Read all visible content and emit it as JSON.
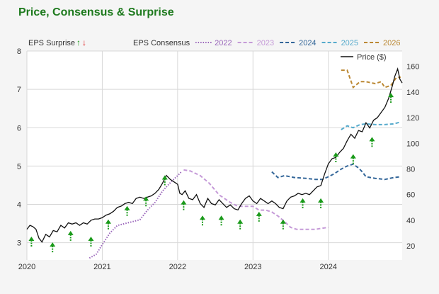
{
  "title": "Price, Consensus & Surprise",
  "colors": {
    "title": "#1e7a1e",
    "background": "#f5f5f5",
    "plot_background": "#ffffff",
    "grid": "#d8d8d8",
    "price": "#111111",
    "surprise_up": "#1a9a1a",
    "surprise_down": "#dd1111",
    "c2022": "#9a66bb",
    "c2023": "#c59ad8",
    "c2024": "#336699",
    "c2025": "#55aacc",
    "c2026": "#bb8833"
  },
  "chart_data": {
    "type": "line",
    "title": "Price, Consensus & Surprise",
    "x_axis": {
      "ticks": [
        "2020",
        "2021",
        "2022",
        "2023",
        "2024"
      ],
      "range": [
        2020.0,
        2024.98
      ]
    },
    "y_left": {
      "ticks": [
        "3",
        "4",
        "5",
        "6",
        "7",
        "8"
      ],
      "range": [
        2.55,
        8.0
      ],
      "label": ""
    },
    "y_right": {
      "ticks": [
        "20",
        "40",
        "60",
        "80",
        "100",
        "120",
        "140",
        "160"
      ],
      "range": [
        9.0,
        172.0
      ],
      "label": ""
    },
    "grid": true,
    "legend": {
      "surprise_label": "EPS Surprise",
      "consensus_label": "EPS Consensus",
      "price_label": "Price ($)",
      "placement": "top",
      "up_glyph": "↑",
      "down_glyph": "↓"
    },
    "series": [
      {
        "name": "2022",
        "axis": "left",
        "style": "dotted",
        "color_key": "c2022",
        "points": [
          [
            2020.83,
            2.6
          ],
          [
            2020.92,
            2.7
          ],
          [
            2021.0,
            2.95
          ],
          [
            2021.1,
            3.25
          ],
          [
            2021.2,
            3.45
          ],
          [
            2021.3,
            3.5
          ],
          [
            2021.4,
            3.55
          ],
          [
            2021.5,
            3.6
          ],
          [
            2021.6,
            3.85
          ],
          [
            2021.7,
            4.05
          ],
          [
            2021.8,
            4.35
          ],
          [
            2021.92,
            4.6
          ],
          [
            2022.0,
            4.75
          ],
          [
            2022.05,
            4.85
          ]
        ]
      },
      {
        "name": "2023",
        "axis": "left",
        "style": "dashed",
        "color_key": "c2023",
        "points": [
          [
            2022.08,
            4.9
          ],
          [
            2022.17,
            4.87
          ],
          [
            2022.3,
            4.75
          ],
          [
            2022.42,
            4.55
          ],
          [
            2022.55,
            4.25
          ],
          [
            2022.7,
            4.05
          ],
          [
            2022.8,
            3.95
          ],
          [
            2022.92,
            3.95
          ],
          [
            2023.0,
            3.95
          ],
          [
            2023.08,
            3.85
          ],
          [
            2023.17,
            3.85
          ],
          [
            2023.25,
            3.8
          ],
          [
            2023.33,
            3.7
          ],
          [
            2023.42,
            3.55
          ],
          [
            2023.5,
            3.4
          ],
          [
            2023.58,
            3.35
          ],
          [
            2023.7,
            3.35
          ],
          [
            2023.83,
            3.35
          ],
          [
            2023.92,
            3.38
          ],
          [
            2024.0,
            3.4
          ]
        ]
      },
      {
        "name": "2024",
        "axis": "left",
        "style": "dashed",
        "color_key": "c2024",
        "points": [
          [
            2023.25,
            4.85
          ],
          [
            2023.33,
            4.7
          ],
          [
            2023.42,
            4.75
          ],
          [
            2023.55,
            4.7
          ],
          [
            2023.7,
            4.68
          ],
          [
            2023.83,
            4.65
          ],
          [
            2023.92,
            4.65
          ],
          [
            2024.0,
            4.72
          ],
          [
            2024.08,
            4.8
          ],
          [
            2024.17,
            4.92
          ],
          [
            2024.25,
            5.0
          ],
          [
            2024.33,
            5.05
          ],
          [
            2024.4,
            4.95
          ],
          [
            2024.45,
            4.85
          ],
          [
            2024.5,
            4.72
          ],
          [
            2024.62,
            4.68
          ],
          [
            2024.75,
            4.65
          ],
          [
            2024.87,
            4.7
          ],
          [
            2024.96,
            4.72
          ]
        ]
      },
      {
        "name": "2025",
        "axis": "left",
        "style": "dashed",
        "color_key": "c2025",
        "points": [
          [
            2024.17,
            5.95
          ],
          [
            2024.25,
            6.05
          ],
          [
            2024.33,
            6.0
          ],
          [
            2024.42,
            6.08
          ],
          [
            2024.5,
            6.1
          ],
          [
            2024.62,
            6.08
          ],
          [
            2024.75,
            6.08
          ],
          [
            2024.87,
            6.1
          ],
          [
            2024.96,
            6.15
          ]
        ]
      },
      {
        "name": "2026",
        "axis": "left",
        "style": "dashed",
        "color_key": "c2026",
        "points": [
          [
            2024.17,
            7.5
          ],
          [
            2024.25,
            7.5
          ],
          [
            2024.33,
            7.05
          ],
          [
            2024.42,
            7.2
          ],
          [
            2024.5,
            7.2
          ],
          [
            2024.62,
            7.15
          ],
          [
            2024.7,
            7.2
          ],
          [
            2024.75,
            7.05
          ],
          [
            2024.83,
            7.1
          ],
          [
            2024.9,
            7.3
          ],
          [
            2024.96,
            7.32
          ]
        ]
      },
      {
        "name": "Price ($)",
        "axis": "right",
        "style": "solid",
        "color_key": "price",
        "points": [
          [
            2020.0,
            33
          ],
          [
            2020.04,
            36
          ],
          [
            2020.08,
            35
          ],
          [
            2020.12,
            33
          ],
          [
            2020.16,
            26
          ],
          [
            2020.2,
            23
          ],
          [
            2020.25,
            29
          ],
          [
            2020.3,
            27
          ],
          [
            2020.35,
            32
          ],
          [
            2020.4,
            31
          ],
          [
            2020.45,
            36
          ],
          [
            2020.5,
            34
          ],
          [
            2020.55,
            38
          ],
          [
            2020.6,
            37
          ],
          [
            2020.65,
            38
          ],
          [
            2020.7,
            36
          ],
          [
            2020.75,
            38
          ],
          [
            2020.8,
            37
          ],
          [
            2020.85,
            40
          ],
          [
            2020.9,
            41
          ],
          [
            2020.95,
            41
          ],
          [
            2021.0,
            42
          ],
          [
            2021.05,
            44
          ],
          [
            2021.1,
            45
          ],
          [
            2021.15,
            47
          ],
          [
            2021.2,
            50
          ],
          [
            2021.25,
            51
          ],
          [
            2021.3,
            53
          ],
          [
            2021.35,
            54
          ],
          [
            2021.4,
            53
          ],
          [
            2021.45,
            57
          ],
          [
            2021.5,
            58
          ],
          [
            2021.55,
            57
          ],
          [
            2021.6,
            58
          ],
          [
            2021.65,
            59
          ],
          [
            2021.7,
            61
          ],
          [
            2021.75,
            64
          ],
          [
            2021.8,
            69
          ],
          [
            2021.85,
            75
          ],
          [
            2021.9,
            72
          ],
          [
            2021.95,
            70
          ],
          [
            2022.0,
            68
          ],
          [
            2022.03,
            61
          ],
          [
            2022.06,
            60
          ],
          [
            2022.1,
            63
          ],
          [
            2022.15,
            57
          ],
          [
            2022.2,
            56
          ],
          [
            2022.25,
            60
          ],
          [
            2022.3,
            53
          ],
          [
            2022.35,
            50
          ],
          [
            2022.4,
            57
          ],
          [
            2022.45,
            53
          ],
          [
            2022.5,
            52
          ],
          [
            2022.55,
            56
          ],
          [
            2022.6,
            53
          ],
          [
            2022.65,
            50
          ],
          [
            2022.7,
            52
          ],
          [
            2022.75,
            49
          ],
          [
            2022.8,
            48
          ],
          [
            2022.85,
            53
          ],
          [
            2022.9,
            57
          ],
          [
            2022.95,
            59
          ],
          [
            2023.0,
            55
          ],
          [
            2023.05,
            53
          ],
          [
            2023.1,
            57
          ],
          [
            2023.15,
            55
          ],
          [
            2023.2,
            53
          ],
          [
            2023.25,
            55
          ],
          [
            2023.3,
            53
          ],
          [
            2023.35,
            50
          ],
          [
            2023.4,
            49
          ],
          [
            2023.45,
            55
          ],
          [
            2023.5,
            58
          ],
          [
            2023.55,
            59
          ],
          [
            2023.6,
            61
          ],
          [
            2023.65,
            60
          ],
          [
            2023.7,
            61
          ],
          [
            2023.75,
            60
          ],
          [
            2023.8,
            63
          ],
          [
            2023.85,
            66
          ],
          [
            2023.9,
            67
          ],
          [
            2023.95,
            76
          ],
          [
            2024.0,
            84
          ],
          [
            2024.05,
            88
          ],
          [
            2024.1,
            89
          ],
          [
            2024.15,
            93
          ],
          [
            2024.2,
            96
          ],
          [
            2024.25,
            102
          ],
          [
            2024.3,
            107
          ],
          [
            2024.35,
            104
          ],
          [
            2024.4,
            110
          ],
          [
            2024.45,
            109
          ],
          [
            2024.5,
            116
          ],
          [
            2024.55,
            112
          ],
          [
            2024.6,
            118
          ],
          [
            2024.65,
            120
          ],
          [
            2024.7,
            124
          ],
          [
            2024.75,
            128
          ],
          [
            2024.8,
            135
          ],
          [
            2024.85,
            145
          ],
          [
            2024.88,
            152
          ],
          [
            2024.92,
            158
          ],
          [
            2024.95,
            150
          ],
          [
            2024.98,
            147
          ]
        ]
      }
    ],
    "surprises": [
      {
        "x": 2020.06,
        "y": 2.9,
        "dir": "up"
      },
      {
        "x": 2020.34,
        "y": 2.75,
        "dir": "up"
      },
      {
        "x": 2020.58,
        "y": 3.05,
        "dir": "up"
      },
      {
        "x": 2020.85,
        "y": 2.9,
        "dir": "up"
      },
      {
        "x": 2021.08,
        "y": 3.35,
        "dir": "up"
      },
      {
        "x": 2021.33,
        "y": 3.7,
        "dir": "up"
      },
      {
        "x": 2021.58,
        "y": 3.95,
        "dir": "up"
      },
      {
        "x": 2021.83,
        "y": 4.5,
        "dir": "up"
      },
      {
        "x": 2022.08,
        "y": 3.85,
        "dir": "up"
      },
      {
        "x": 2022.33,
        "y": 3.45,
        "dir": "up"
      },
      {
        "x": 2022.58,
        "y": 3.45,
        "dir": "up"
      },
      {
        "x": 2022.83,
        "y": 3.35,
        "dir": "up"
      },
      {
        "x": 2023.08,
        "y": 3.55,
        "dir": "up"
      },
      {
        "x": 2023.4,
        "y": 3.35,
        "dir": "up"
      },
      {
        "x": 2023.66,
        "y": 3.9,
        "dir": "up"
      },
      {
        "x": 2023.9,
        "y": 3.9,
        "dir": "up"
      },
      {
        "x": 2024.1,
        "y": 5.1,
        "dir": "up"
      },
      {
        "x": 2024.33,
        "y": 5.05,
        "dir": "up"
      },
      {
        "x": 2024.58,
        "y": 5.5,
        "dir": "up"
      },
      {
        "x": 2024.83,
        "y": 6.65,
        "dir": "up"
      }
    ]
  }
}
